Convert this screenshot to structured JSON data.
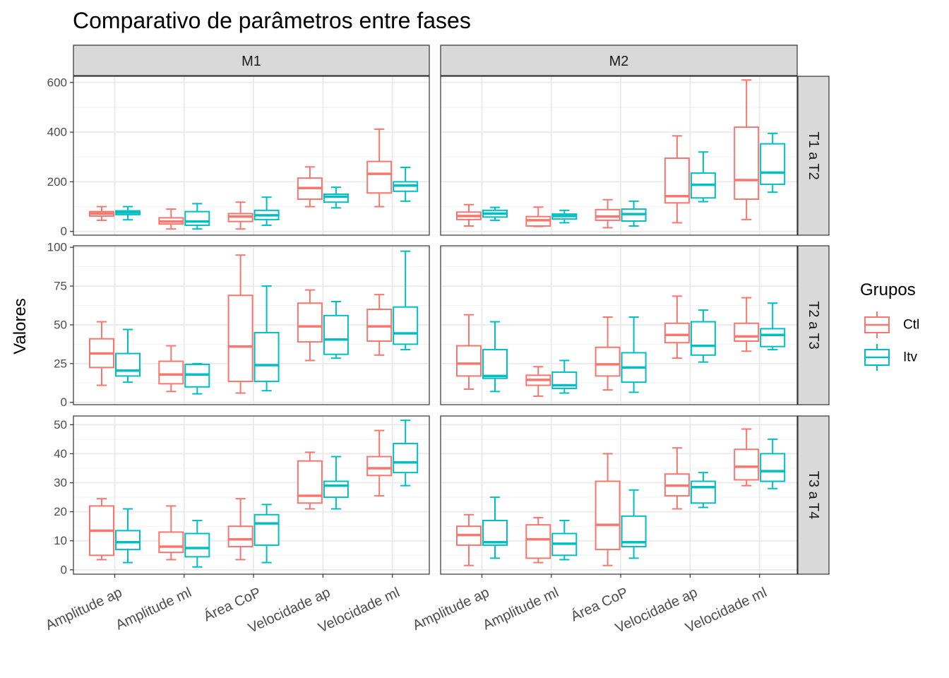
{
  "chart_data": {
    "type": "boxplot",
    "title": "Comparativo de parâmetros entre fases",
    "ylabel": "Valores",
    "xlabel": "",
    "categories": [
      "Amplitude ap",
      "Amplitude ml",
      "Área CoP",
      "Velocidade ap",
      "Velocidade ml"
    ],
    "columns": [
      "M1",
      "M2"
    ],
    "rows": [
      "T1 a T2",
      "T2 a T3",
      "T3 a T4"
    ],
    "legend": {
      "title": "Grupos",
      "position": "right",
      "items": [
        {
          "name": "Ctl",
          "color": "#F8766D"
        },
        {
          "name": "Itv",
          "color": "#00BFC4"
        }
      ]
    },
    "grid": true,
    "facets": [
      {
        "row": "T1 a T2",
        "col": "M1",
        "ylim": [
          -15,
          625
        ],
        "yticks": [
          0,
          200,
          400,
          600
        ],
        "minor": [
          100,
          300,
          500
        ],
        "boxes": {
          "Ctl": [
            [
              45,
              62,
              72,
              80,
              100
            ],
            [
              10,
              30,
              40,
              55,
              90
            ],
            [
              10,
              40,
              60,
              72,
              118
            ],
            [
              100,
              130,
              175,
              215,
              260
            ],
            [
              100,
              155,
              232,
              282,
              412
            ]
          ],
          "Itv": [
            [
              47,
              68,
              76,
              83,
              100
            ],
            [
              10,
              25,
              40,
              80,
              112
            ],
            [
              25,
              48,
              65,
              85,
              138
            ],
            [
              95,
              118,
              140,
              150,
              178
            ],
            [
              122,
              162,
              185,
              200,
              258
            ]
          ]
        }
      },
      {
        "row": "T1 a T2",
        "col": "M2",
        "ylim": [
          -15,
          625
        ],
        "yticks": [
          0,
          200,
          400,
          600
        ],
        "minor": [
          100,
          300,
          500
        ],
        "boxes": {
          "Ctl": [
            [
              22,
              48,
              62,
              78,
              108
            ],
            [
              20,
              22,
              45,
              60,
              98
            ],
            [
              15,
              45,
              60,
              88,
              128
            ],
            [
              35,
              115,
              142,
              295,
              385
            ],
            [
              48,
              130,
              207,
              420,
              610
            ]
          ],
          "Itv": [
            [
              45,
              58,
              72,
              85,
              97
            ],
            [
              35,
              50,
              62,
              70,
              85
            ],
            [
              22,
              42,
              70,
              90,
              122
            ],
            [
              120,
              135,
              188,
              235,
              320
            ],
            [
              158,
              190,
              237,
              353,
              395
            ]
          ]
        }
      },
      {
        "row": "T2 a T3",
        "col": "M1",
        "ylim": [
          -1.5,
          101
        ],
        "yticks": [
          0,
          25,
          50,
          75,
          100
        ],
        "minor": [
          12.5,
          37.5,
          62.5,
          87.5
        ],
        "boxes": {
          "Ctl": [
            [
              11,
              22.5,
              31.5,
              41,
              52
            ],
            [
              7,
              12,
              18,
              26.5,
              36.5
            ],
            [
              6,
              13.5,
              36,
              69,
              95
            ],
            [
              27,
              39,
              49,
              64,
              72.5
            ],
            [
              30.5,
              39.5,
              49,
              60,
              69.5
            ]
          ],
          "Itv": [
            [
              13,
              17,
              20.5,
              31.5,
              47
            ],
            [
              5.5,
              10,
              18,
              24.5,
              25
            ],
            [
              7.5,
              13.5,
              24,
              45,
              75
            ],
            [
              28.5,
              31,
              40.5,
              56,
              65
            ],
            [
              34,
              37.5,
              44.5,
              61.5,
              97.5
            ]
          ]
        }
      },
      {
        "row": "T2 a T3",
        "col": "M2",
        "ylim": [
          -1.5,
          101
        ],
        "yticks": [
          0,
          25,
          50,
          75,
          100
        ],
        "minor": [
          12.5,
          37.5,
          62.5,
          87.5
        ],
        "boxes": {
          "Ctl": [
            [
              8.5,
              17,
              25,
              36.5,
              56.5
            ],
            [
              4,
              11,
              14.5,
              17.5,
              23
            ],
            [
              8,
              17,
              24.5,
              35.5,
              55
            ],
            [
              28.5,
              38.5,
              43.5,
              51,
              68.5
            ],
            [
              33,
              39.5,
              42.5,
              51,
              67.5
            ]
          ],
          "Itv": [
            [
              7,
              15.5,
              17,
              34,
              52
            ],
            [
              6,
              9,
              11,
              19.5,
              27
            ],
            [
              6.5,
              13,
              22.5,
              32,
              55
            ],
            [
              26,
              30.5,
              36.5,
              52,
              59.5
            ],
            [
              34,
              36,
              43.5,
              47.5,
              64
            ]
          ]
        }
      },
      {
        "row": "T3 a T4",
        "col": "M1",
        "ylim": [
          -1.5,
          53
        ],
        "yticks": [
          0,
          10,
          20,
          30,
          40,
          50
        ],
        "minor": [
          5,
          15,
          25,
          35,
          45
        ],
        "boxes": {
          "Ctl": [
            [
              3.5,
              5,
              13.5,
              22,
              24.5
            ],
            [
              3.5,
              6,
              8,
              13,
              22
            ],
            [
              3.5,
              8,
              10.5,
              15,
              24.5
            ],
            [
              21,
              23,
              25.5,
              37.5,
              40.5
            ],
            [
              25.5,
              32.5,
              35,
              39,
              48
            ]
          ],
          "Itv": [
            [
              2.5,
              7,
              9.5,
              13.5,
              21
            ],
            [
              1,
              4.5,
              7.5,
              12.5,
              17
            ],
            [
              2.5,
              8.5,
              16,
              19,
              22.5
            ],
            [
              21,
              25,
              29,
              30.5,
              39
            ],
            [
              29,
              33.5,
              37,
              43.5,
              51.5
            ]
          ]
        }
      },
      {
        "row": "T3 a T4",
        "col": "M2",
        "ylim": [
          -1.5,
          53
        ],
        "yticks": [
          0,
          10,
          20,
          30,
          40,
          50
        ],
        "minor": [
          5,
          15,
          25,
          35,
          45
        ],
        "boxes": {
          "Ctl": [
            [
              1.5,
              8.5,
              12,
              15,
              19
            ],
            [
              2.5,
              4,
              10.5,
              15.5,
              18
            ],
            [
              1.5,
              7,
              15.5,
              30.5,
              40
            ],
            [
              21,
              25.5,
              29,
              33,
              42
            ],
            [
              29,
              31,
              35.5,
              41.5,
              48.5
            ]
          ],
          "Itv": [
            [
              4,
              8.5,
              9.5,
              17,
              25
            ],
            [
              3.5,
              5,
              9,
              12.5,
              17
            ],
            [
              4,
              8,
              9.5,
              18.5,
              27.5
            ],
            [
              21.5,
              23,
              28.5,
              30.5,
              33.5
            ],
            [
              28,
              30.5,
              34,
              40,
              45
            ]
          ]
        }
      }
    ]
  }
}
